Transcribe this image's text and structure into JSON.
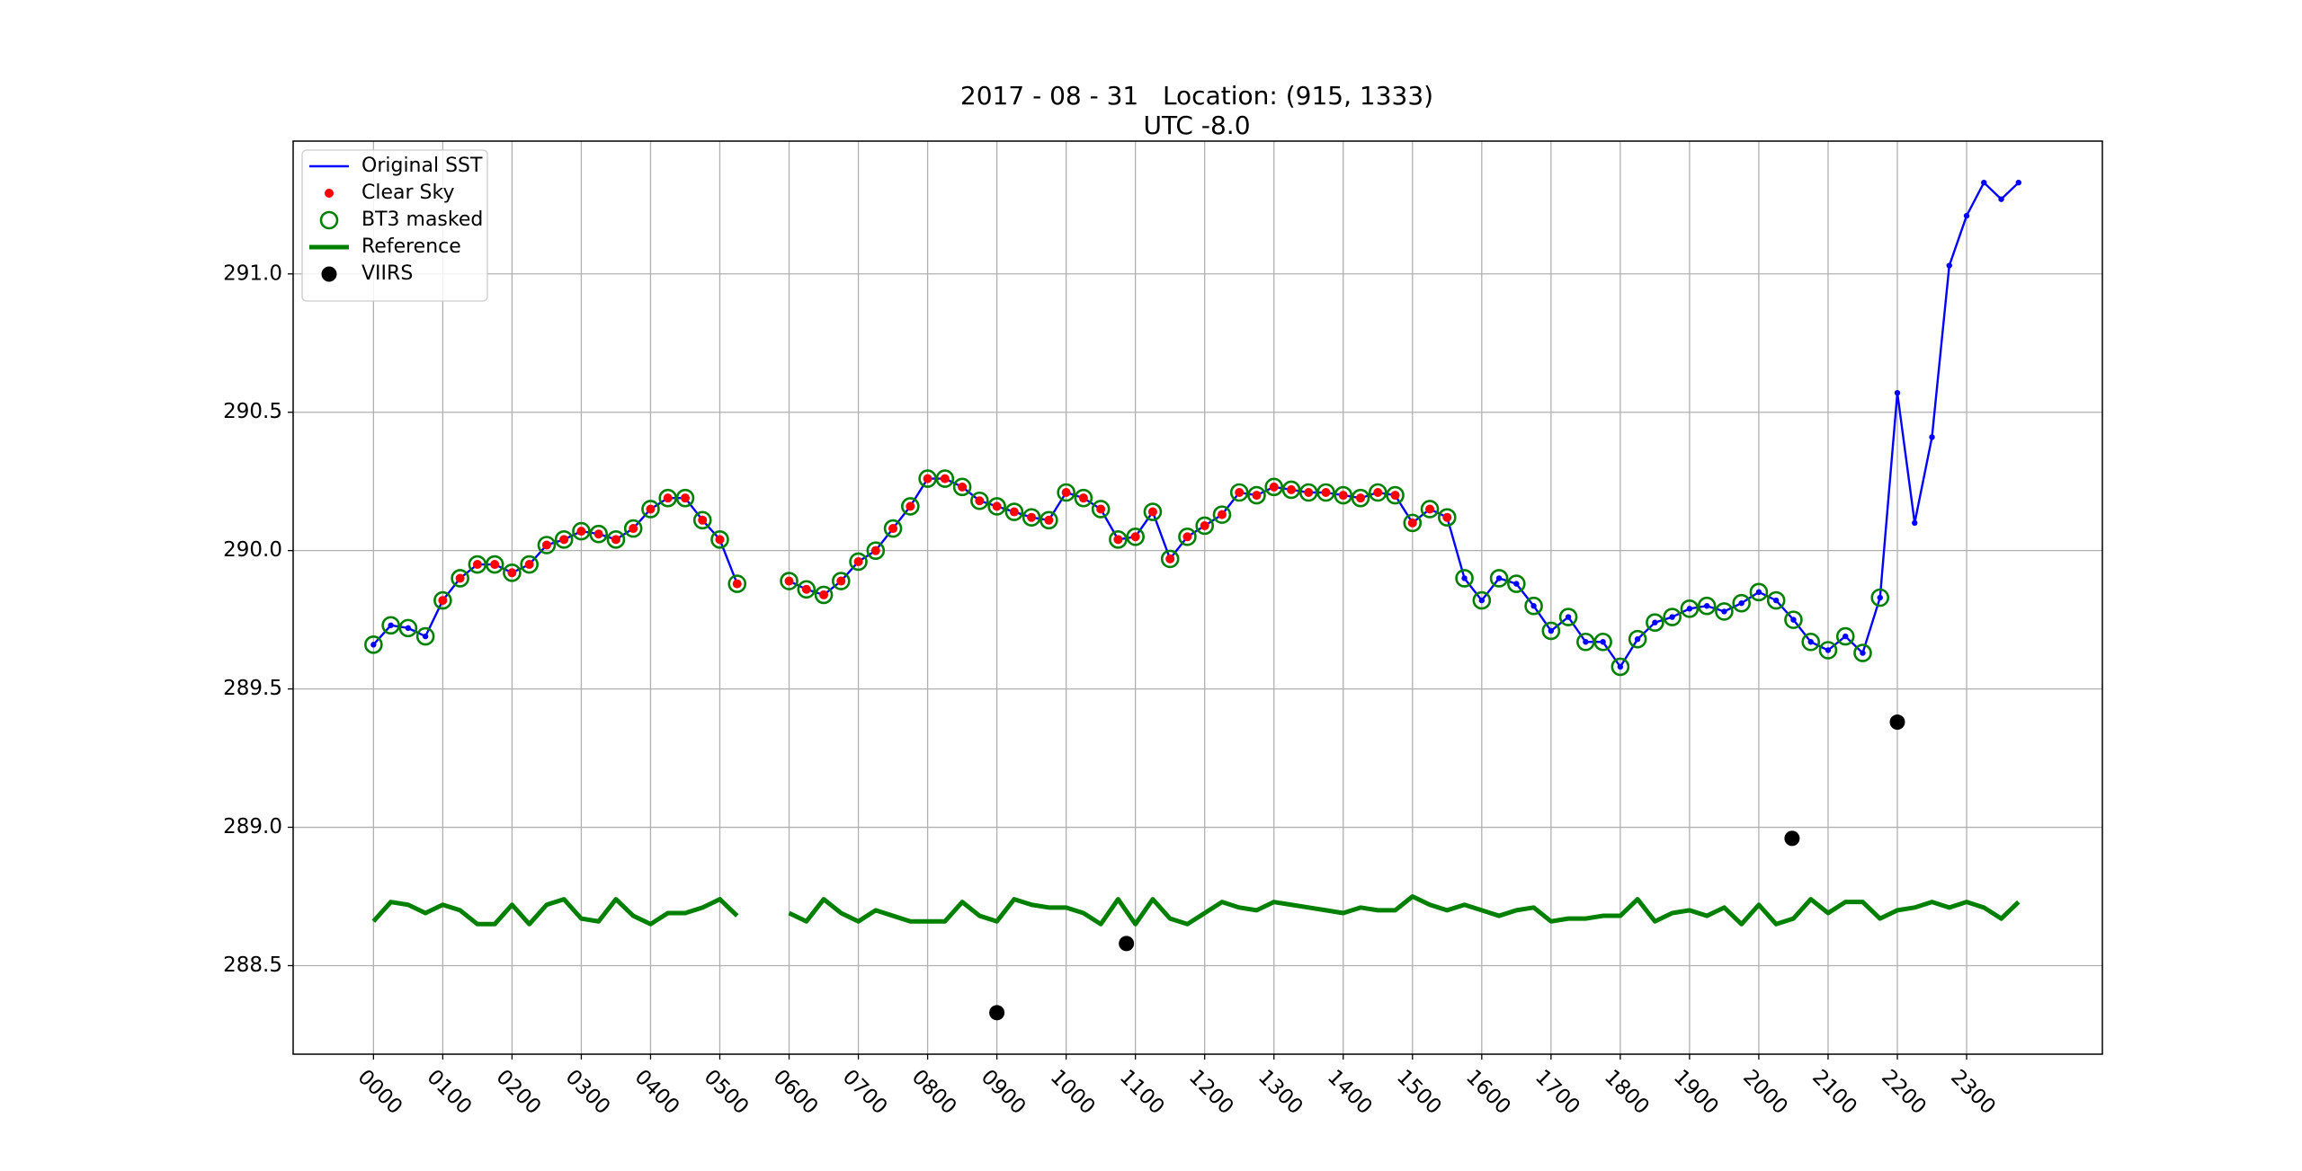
{
  "chart_data": {
    "type": "line",
    "title": "2017 - 08 - 31   Location: (915, 1333)",
    "subtitle": "UTC -8.0",
    "x": [
      0,
      0.25,
      0.5,
      0.75,
      1,
      1.25,
      1.5,
      1.75,
      2,
      2.25,
      2.5,
      2.75,
      3,
      3.25,
      3.5,
      3.75,
      4,
      4.25,
      4.5,
      4.75,
      5,
      5.25,
      5.5,
      5.75,
      6,
      6.25,
      6.5,
      6.75,
      7,
      7.25,
      7.5,
      7.75,
      8,
      8.25,
      8.5,
      8.75,
      9,
      9.25,
      9.5,
      9.75,
      10,
      10.25,
      10.5,
      10.75,
      11,
      11.25,
      11.5,
      11.75,
      12,
      12.25,
      12.5,
      12.75,
      13,
      13.25,
      13.5,
      13.75,
      14,
      14.25,
      14.5,
      14.75,
      15,
      15.25,
      15.5,
      15.75,
      16,
      16.25,
      16.5,
      16.75,
      17,
      17.25,
      17.5,
      17.75,
      18,
      18.25,
      18.5,
      18.75,
      19,
      19.25,
      19.5,
      19.75,
      20,
      20.25,
      20.5,
      20.75,
      21,
      21.25,
      21.5,
      21.75,
      22,
      22.25,
      22.5,
      22.75,
      23,
      23.25,
      23.5,
      23.75
    ],
    "xlim": [
      -1.16,
      24.96
    ],
    "xticks": [
      {
        "value": 0,
        "label": "0000"
      },
      {
        "value": 1,
        "label": "0100"
      },
      {
        "value": 2,
        "label": "0200"
      },
      {
        "value": 3,
        "label": "0300"
      },
      {
        "value": 4,
        "label": "0400"
      },
      {
        "value": 5,
        "label": "0500"
      },
      {
        "value": 6,
        "label": "0600"
      },
      {
        "value": 7,
        "label": "0700"
      },
      {
        "value": 8,
        "label": "0800"
      },
      {
        "value": 9,
        "label": "0900"
      },
      {
        "value": 10,
        "label": "1000"
      },
      {
        "value": 11,
        "label": "1100"
      },
      {
        "value": 12,
        "label": "1200"
      },
      {
        "value": 13,
        "label": "1300"
      },
      {
        "value": 14,
        "label": "1400"
      },
      {
        "value": 15,
        "label": "1500"
      },
      {
        "value": 16,
        "label": "1600"
      },
      {
        "value": 17,
        "label": "1700"
      },
      {
        "value": 18,
        "label": "1800"
      },
      {
        "value": 19,
        "label": "1900"
      },
      {
        "value": 20,
        "label": "2000"
      },
      {
        "value": 21,
        "label": "2100"
      },
      {
        "value": 22,
        "label": "2200"
      },
      {
        "value": 23,
        "label": "2300"
      }
    ],
    "ylim": [
      288.18,
      291.48
    ],
    "yticks": [
      288.5,
      {
        "value": 289,
        "label": "289.0"
      },
      289.5,
      {
        "value": 290,
        "label": "290.0"
      },
      290.5,
      {
        "value": 291,
        "label": "291.0"
      }
    ],
    "grid": true,
    "legend": "upper left",
    "series": [
      {
        "name": "Original SST",
        "color": "#0000ff",
        "style": "line-dots",
        "values": [
          289.66,
          289.73,
          289.72,
          289.69,
          289.82,
          289.9,
          289.95,
          289.95,
          289.92,
          289.95,
          290.02,
          290.04,
          290.07,
          290.06,
          290.04,
          290.08,
          290.15,
          290.19,
          290.19,
          290.11,
          290.04,
          289.88,
          null,
          null,
          289.89,
          289.86,
          289.84,
          289.89,
          289.96,
          290.0,
          290.08,
          290.16,
          290.26,
          290.26,
          290.23,
          290.18,
          290.16,
          290.14,
          290.12,
          290.11,
          290.21,
          290.19,
          290.15,
          290.04,
          290.05,
          290.14,
          289.97,
          290.05,
          290.09,
          290.13,
          290.21,
          290.2,
          290.23,
          290.22,
          290.21,
          290.21,
          290.2,
          290.19,
          290.21,
          290.2,
          290.1,
          290.15,
          290.12,
          289.9,
          289.82,
          289.9,
          289.88,
          289.8,
          289.71,
          289.76,
          289.67,
          289.67,
          289.58,
          289.68,
          289.74,
          289.76,
          289.79,
          289.8,
          289.78,
          289.81,
          289.85,
          289.82,
          289.75,
          289.67,
          289.64,
          289.69,
          289.63,
          289.83,
          290.57,
          290.1,
          290.41,
          291.03,
          291.21,
          291.33,
          291.27,
          291.33
        ]
      },
      {
        "name": "Clear Sky",
        "color": "#ff0000",
        "style": "dots",
        "values": [
          null,
          null,
          null,
          null,
          289.82,
          289.9,
          289.95,
          289.95,
          289.92,
          289.95,
          290.02,
          290.04,
          290.07,
          290.06,
          290.04,
          290.08,
          290.15,
          290.19,
          290.19,
          290.11,
          290.04,
          289.88,
          null,
          null,
          289.89,
          289.86,
          289.84,
          289.89,
          289.96,
          290.0,
          290.08,
          290.16,
          290.26,
          290.26,
          290.23,
          290.18,
          290.16,
          290.14,
          290.12,
          290.11,
          290.21,
          290.19,
          290.15,
          290.04,
          290.05,
          290.14,
          289.97,
          290.05,
          290.09,
          290.13,
          290.21,
          290.2,
          290.23,
          290.22,
          290.21,
          290.21,
          290.2,
          290.19,
          290.21,
          290.2,
          290.1,
          290.15,
          290.12,
          null,
          null,
          null,
          null,
          null,
          null,
          null,
          null,
          null,
          null,
          null,
          null,
          null,
          null,
          null,
          null,
          null,
          null,
          null,
          null,
          null,
          null,
          null,
          null,
          null,
          null,
          null,
          null,
          null,
          null,
          null,
          null,
          null
        ]
      },
      {
        "name": "BT3 masked",
        "color": "#008000",
        "style": "rings",
        "values": [
          289.66,
          289.73,
          289.72,
          289.69,
          289.82,
          289.9,
          289.95,
          289.95,
          289.92,
          289.95,
          290.02,
          290.04,
          290.07,
          290.06,
          290.04,
          290.08,
          290.15,
          290.19,
          290.19,
          290.11,
          290.04,
          289.88,
          null,
          null,
          289.89,
          289.86,
          289.84,
          289.89,
          289.96,
          290.0,
          290.08,
          290.16,
          290.26,
          290.26,
          290.23,
          290.18,
          290.16,
          290.14,
          290.12,
          290.11,
          290.21,
          290.19,
          290.15,
          290.04,
          290.05,
          290.14,
          289.97,
          290.05,
          290.09,
          290.13,
          290.21,
          290.2,
          290.23,
          290.22,
          290.21,
          290.21,
          290.2,
          290.19,
          290.21,
          290.2,
          290.1,
          290.15,
          290.12,
          289.9,
          289.82,
          289.9,
          289.88,
          289.8,
          289.71,
          289.76,
          289.67,
          289.67,
          289.58,
          289.68,
          289.74,
          289.76,
          289.79,
          289.8,
          289.78,
          289.81,
          289.85,
          289.82,
          289.75,
          289.67,
          289.64,
          289.69,
          289.63,
          289.83,
          null,
          null,
          null,
          null,
          null,
          null,
          null,
          null
        ]
      },
      {
        "name": "Reference",
        "color": "#008000",
        "style": "thick-line",
        "values": [
          288.66,
          288.73,
          288.72,
          288.69,
          288.72,
          288.7,
          288.65,
          288.65,
          288.72,
          288.65,
          288.72,
          288.74,
          288.67,
          288.66,
          288.74,
          288.68,
          288.65,
          288.69,
          288.69,
          288.71,
          288.74,
          288.68,
          null,
          null,
          288.69,
          288.66,
          288.74,
          288.69,
          288.66,
          288.7,
          288.68,
          288.66,
          288.66,
          288.66,
          288.73,
          288.68,
          288.66,
          288.74,
          288.72,
          288.71,
          288.71,
          288.69,
          288.65,
          288.74,
          288.65,
          288.74,
          288.67,
          288.65,
          288.69,
          288.73,
          288.71,
          288.7,
          288.73,
          288.72,
          288.71,
          288.7,
          288.69,
          288.71,
          288.7,
          288.7,
          288.75,
          288.72,
          288.7,
          288.72,
          288.7,
          288.68,
          288.7,
          288.71,
          288.66,
          288.67,
          288.67,
          288.68,
          288.68,
          288.74,
          288.66,
          288.69,
          288.7,
          288.68,
          288.71,
          288.65,
          288.72,
          288.65,
          288.67,
          288.74,
          288.69,
          288.73,
          288.73,
          288.67,
          288.7,
          288.71,
          288.73,
          288.71,
          288.73,
          288.71,
          288.67,
          288.73
        ]
      },
      {
        "name": "VIIRS",
        "color": "#000000",
        "style": "big-dots",
        "x": [
          9.0,
          10.87,
          20.48,
          22.0
        ],
        "values": [
          288.33,
          288.58,
          288.96,
          289.38
        ]
      }
    ]
  }
}
